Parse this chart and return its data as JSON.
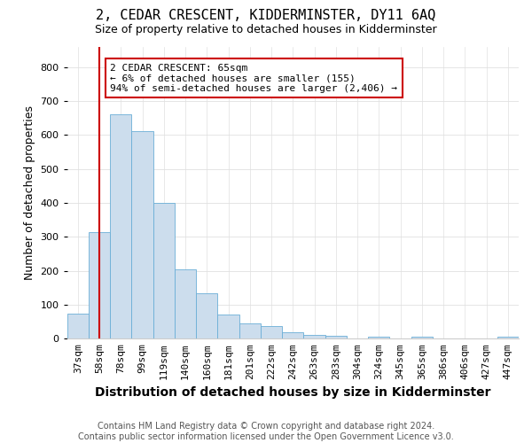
{
  "title": "2, CEDAR CRESCENT, KIDDERMINSTER, DY11 6AQ",
  "subtitle": "Size of property relative to detached houses in Kidderminster",
  "xlabel": "Distribution of detached houses by size in Kidderminster",
  "ylabel": "Number of detached properties",
  "categories": [
    "37sqm",
    "58sqm",
    "78sqm",
    "99sqm",
    "119sqm",
    "140sqm",
    "160sqm",
    "181sqm",
    "201sqm",
    "222sqm",
    "242sqm",
    "263sqm",
    "283sqm",
    "304sqm",
    "324sqm",
    "345sqm",
    "365sqm",
    "386sqm",
    "406sqm",
    "427sqm",
    "447sqm"
  ],
  "values": [
    75,
    315,
    660,
    610,
    400,
    205,
    135,
    70,
    45,
    36,
    20,
    12,
    8,
    0,
    7,
    2,
    5,
    0,
    0,
    0,
    7
  ],
  "bar_color": "#ccdded",
  "bar_edge_color": "#6aaed6",
  "vline_x_index": 1,
  "vline_color": "#cc0000",
  "annotation_text": "2 CEDAR CRESCENT: 65sqm\n← 6% of detached houses are smaller (155)\n94% of semi-detached houses are larger (2,406) →",
  "annotation_box_facecolor": "#ffffff",
  "annotation_box_edge_color": "#cc0000",
  "ylim": [
    0,
    860
  ],
  "yticks": [
    0,
    100,
    200,
    300,
    400,
    500,
    600,
    700,
    800
  ],
  "footer": "Contains HM Land Registry data © Crown copyright and database right 2024.\nContains public sector information licensed under the Open Government Licence v3.0.",
  "background_color": "#ffffff",
  "plot_background_color": "#ffffff",
  "title_fontsize": 11,
  "subtitle_fontsize": 9,
  "xlabel_fontsize": 10,
  "ylabel_fontsize": 9,
  "tick_fontsize": 8,
  "footer_fontsize": 7,
  "annotation_fontsize": 8
}
